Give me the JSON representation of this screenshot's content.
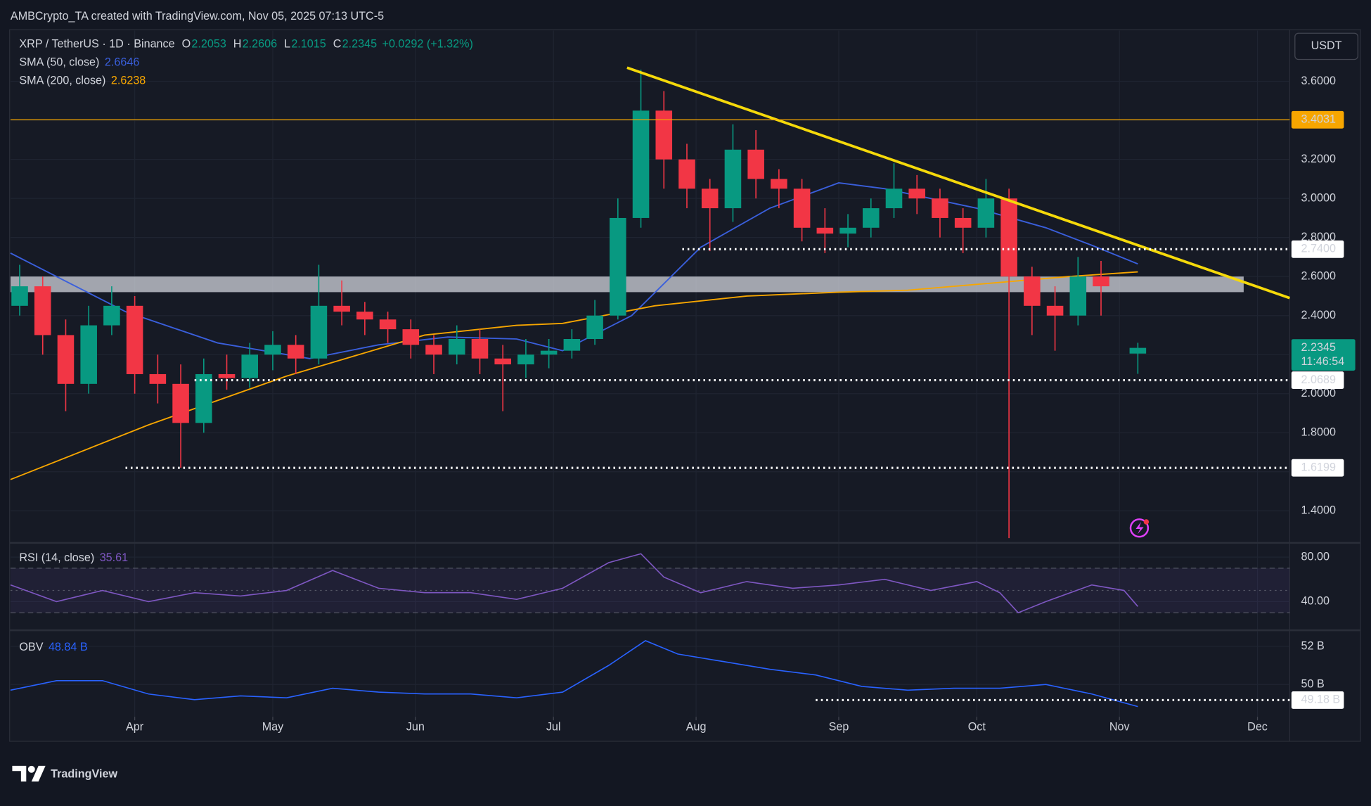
{
  "header": {
    "credit": "AMBCrypto_TA created with TradingView.com, Nov 05, 2025 07:13 UTC-5",
    "brand": "TradingView"
  },
  "chart_data": [
    {
      "type": "candlestick",
      "title": "XRP / TetherUS · 1D · Binance",
      "ohlc_keys": [
        "O",
        "H",
        "L",
        "C"
      ],
      "change": "+0.0292 (+1.32%)",
      "currency": "USDT",
      "countdown": "11:46:54",
      "up_color": "#089981",
      "down_color": "#f23645",
      "xlim": [
        0,
        278
      ],
      "x": [
        2,
        7,
        12,
        17,
        22,
        27,
        32,
        37,
        42,
        47,
        52,
        57,
        62,
        67,
        72,
        77,
        82,
        87,
        92,
        97,
        102,
        107,
        112,
        117,
        122,
        127,
        132,
        137,
        142,
        147,
        152,
        157,
        162,
        167,
        172,
        177,
        182,
        187,
        192,
        197,
        202,
        207,
        212,
        217,
        222,
        227,
        232,
        237,
        245
      ],
      "open": [
        2.45,
        2.55,
        2.3,
        2.05,
        2.35,
        2.45,
        2.1,
        2.05,
        1.85,
        2.1,
        2.08,
        2.2,
        2.25,
        2.18,
        2.45,
        2.42,
        2.38,
        2.33,
        2.25,
        2.2,
        2.28,
        2.18,
        2.15,
        2.2,
        2.22,
        2.28,
        2.4,
        2.9,
        3.45,
        3.2,
        3.05,
        2.95,
        3.25,
        3.1,
        3.05,
        2.85,
        2.82,
        2.85,
        2.95,
        3.05,
        3.0,
        2.9,
        2.85,
        3.0,
        2.6,
        2.45,
        2.4,
        2.6,
        2.2053
      ],
      "high": [
        2.66,
        2.6,
        2.38,
        2.45,
        2.55,
        2.5,
        2.2,
        2.15,
        2.18,
        2.2,
        2.26,
        2.32,
        2.3,
        2.66,
        2.58,
        2.47,
        2.42,
        2.38,
        2.3,
        2.35,
        2.33,
        2.25,
        2.28,
        2.28,
        2.33,
        2.48,
        3.0,
        3.66,
        3.55,
        3.28,
        3.1,
        3.38,
        3.35,
        3.15,
        3.1,
        2.95,
        2.92,
        3.0,
        3.18,
        3.12,
        3.05,
        2.95,
        3.1,
        3.05,
        2.65,
        2.55,
        2.7,
        2.68,
        2.2606
      ],
      "low": [
        2.4,
        2.2,
        1.91,
        2.0,
        2.3,
        2.0,
        1.95,
        1.62,
        1.8,
        2.02,
        2.03,
        2.12,
        2.1,
        2.15,
        2.35,
        2.3,
        2.26,
        2.18,
        2.1,
        2.15,
        2.1,
        1.91,
        2.08,
        2.13,
        2.18,
        2.25,
        2.38,
        2.85,
        3.05,
        2.95,
        2.73,
        2.88,
        3.0,
        2.95,
        2.78,
        2.72,
        2.75,
        2.8,
        2.9,
        2.92,
        2.8,
        2.72,
        2.8,
        1.26,
        2.3,
        2.22,
        2.35,
        2.4,
        2.1015
      ],
      "close": [
        2.55,
        2.3,
        2.05,
        2.35,
        2.45,
        2.1,
        2.05,
        1.85,
        2.1,
        2.08,
        2.2,
        2.25,
        2.18,
        2.45,
        2.42,
        2.38,
        2.33,
        2.25,
        2.2,
        2.28,
        2.18,
        2.15,
        2.2,
        2.22,
        2.28,
        2.4,
        2.9,
        3.45,
        3.2,
        3.05,
        2.95,
        3.25,
        3.1,
        3.05,
        2.85,
        2.82,
        2.85,
        2.95,
        3.05,
        3.0,
        2.9,
        2.85,
        3.0,
        2.6,
        2.45,
        2.4,
        2.6,
        2.55,
        2.2345
      ],
      "series": [
        {
          "name": "SMA (50, close)",
          "color": "#3a5fdc",
          "x": [
            0,
            25,
            45,
            60,
            65,
            80,
            95,
            110,
            120,
            135,
            150,
            165,
            180,
            190,
            200,
            210,
            225,
            235,
            245
          ],
          "values": [
            2.72,
            2.42,
            2.26,
            2.2,
            2.18,
            2.25,
            2.29,
            2.28,
            2.22,
            2.4,
            2.75,
            2.95,
            3.08,
            3.05,
            3.0,
            2.95,
            2.85,
            2.76,
            2.6646
          ]
        },
        {
          "name": "SMA (200, close)",
          "color": "#f7a600",
          "x": [
            0,
            30,
            60,
            90,
            110,
            120,
            140,
            160,
            180,
            195,
            210,
            230,
            245
          ],
          "values": [
            1.56,
            1.84,
            2.09,
            2.3,
            2.35,
            2.36,
            2.45,
            2.5,
            2.52,
            2.53,
            2.56,
            2.6,
            2.6238
          ]
        }
      ],
      "ylim": [
        1.24,
        3.86
      ],
      "yticks": [
        {
          "value": 1.4,
          "label": "1.4000"
        },
        {
          "value": 1.6,
          "label": "1.6000"
        },
        {
          "value": 1.8,
          "label": "1.8000"
        },
        {
          "value": 2.0,
          "label": "2.0000"
        },
        {
          "value": 2.2,
          "label": "2.2000"
        },
        {
          "value": 2.4,
          "label": "2.4000"
        },
        {
          "value": 2.6,
          "label": "2.6000"
        },
        {
          "value": 2.8,
          "label": "2.8000"
        },
        {
          "value": 3.0,
          "label": "3.0000"
        },
        {
          "value": 3.2,
          "label": "3.2000"
        },
        {
          "value": 3.4,
          "label": "3.4000"
        },
        {
          "value": 3.6,
          "label": "3.6000"
        }
      ],
      "levels": [
        {
          "value": 3.4031,
          "label": "3.4031",
          "style": "solid",
          "color": "#f7a600",
          "x_start": 0
        },
        {
          "value": 2.74,
          "label": "2.7400",
          "style": "dotted",
          "color": "#ffffff",
          "x_start": 146
        },
        {
          "value": 2.0689,
          "label": "2.0689",
          "style": "dotted",
          "color": "#ffffff",
          "x_start": 40
        },
        {
          "value": 1.6199,
          "label": "1.6199",
          "style": "dotted",
          "color": "#ffffff",
          "x_start": 25
        }
      ],
      "zone": {
        "values": [
          2.52,
          2.6
        ],
        "x": [
          0,
          268
        ],
        "color": "#d1d4dc"
      },
      "trendline": {
        "x": [
          134,
          278
        ],
        "values": [
          3.67,
          2.49
        ],
        "color": "#f5d90a"
      },
      "grid": true
    },
    {
      "type": "line",
      "xlim": [
        0,
        278
      ],
      "series": [
        {
          "name": "RSI (14, close)",
          "color": "#7e57c2",
          "x": [
            0,
            10,
            20,
            30,
            40,
            50,
            60,
            70,
            80,
            90,
            100,
            110,
            120,
            130,
            137,
            142,
            150,
            160,
            170,
            180,
            190,
            200,
            210,
            215,
            219,
            225,
            235,
            242,
            245
          ],
          "values": [
            55,
            40,
            50,
            40,
            48,
            45,
            50,
            68,
            52,
            48,
            48,
            42,
            52,
            75,
            83,
            62,
            48,
            58,
            52,
            55,
            60,
            50,
            58,
            48,
            30,
            40,
            55,
            50,
            35.61
          ]
        }
      ],
      "bands": [
        30,
        50,
        70
      ],
      "ylim": [
        15,
        92
      ],
      "yticks": [
        {
          "value": 80,
          "label": "80.00"
        },
        {
          "value": 40,
          "label": "40.00"
        }
      ],
      "grid": true
    },
    {
      "type": "line",
      "xlim": [
        0,
        278
      ],
      "series": [
        {
          "name": "OBV",
          "value_label": "48.84 B",
          "color": "#2962ff",
          "x": [
            0,
            10,
            20,
            30,
            40,
            50,
            60,
            70,
            80,
            90,
            100,
            110,
            120,
            130,
            138,
            145,
            155,
            165,
            175,
            185,
            195,
            205,
            215,
            225,
            235,
            245
          ],
          "values": [
            49.7,
            50.2,
            50.2,
            49.5,
            49.2,
            49.4,
            49.3,
            49.8,
            49.6,
            49.5,
            49.5,
            49.3,
            49.6,
            51.0,
            52.3,
            51.6,
            51.2,
            50.8,
            50.5,
            49.9,
            49.7,
            49.8,
            49.8,
            50.0,
            49.5,
            48.84
          ]
        }
      ],
      "levels": [
        {
          "value": 49.18,
          "label": "49.18 B",
          "style": "dotted",
          "color": "#ffffff",
          "x_start": 175
        }
      ],
      "ylim": [
        48.3,
        52.8
      ],
      "yticks": [
        {
          "value": 52,
          "label": "52 B"
        },
        {
          "value": 50,
          "label": "50 B"
        }
      ],
      "xticks": [
        {
          "value": 27,
          "label": "Apr"
        },
        {
          "value": 57,
          "label": "May"
        },
        {
          "value": 88,
          "label": "Jun"
        },
        {
          "value": 118,
          "label": "Jul"
        },
        {
          "value": 149,
          "label": "Aug"
        },
        {
          "value": 180,
          "label": "Sep"
        },
        {
          "value": 210,
          "label": "Oct"
        },
        {
          "value": 241,
          "label": "Nov"
        },
        {
          "value": 271,
          "label": "Dec"
        }
      ],
      "grid": true
    }
  ]
}
